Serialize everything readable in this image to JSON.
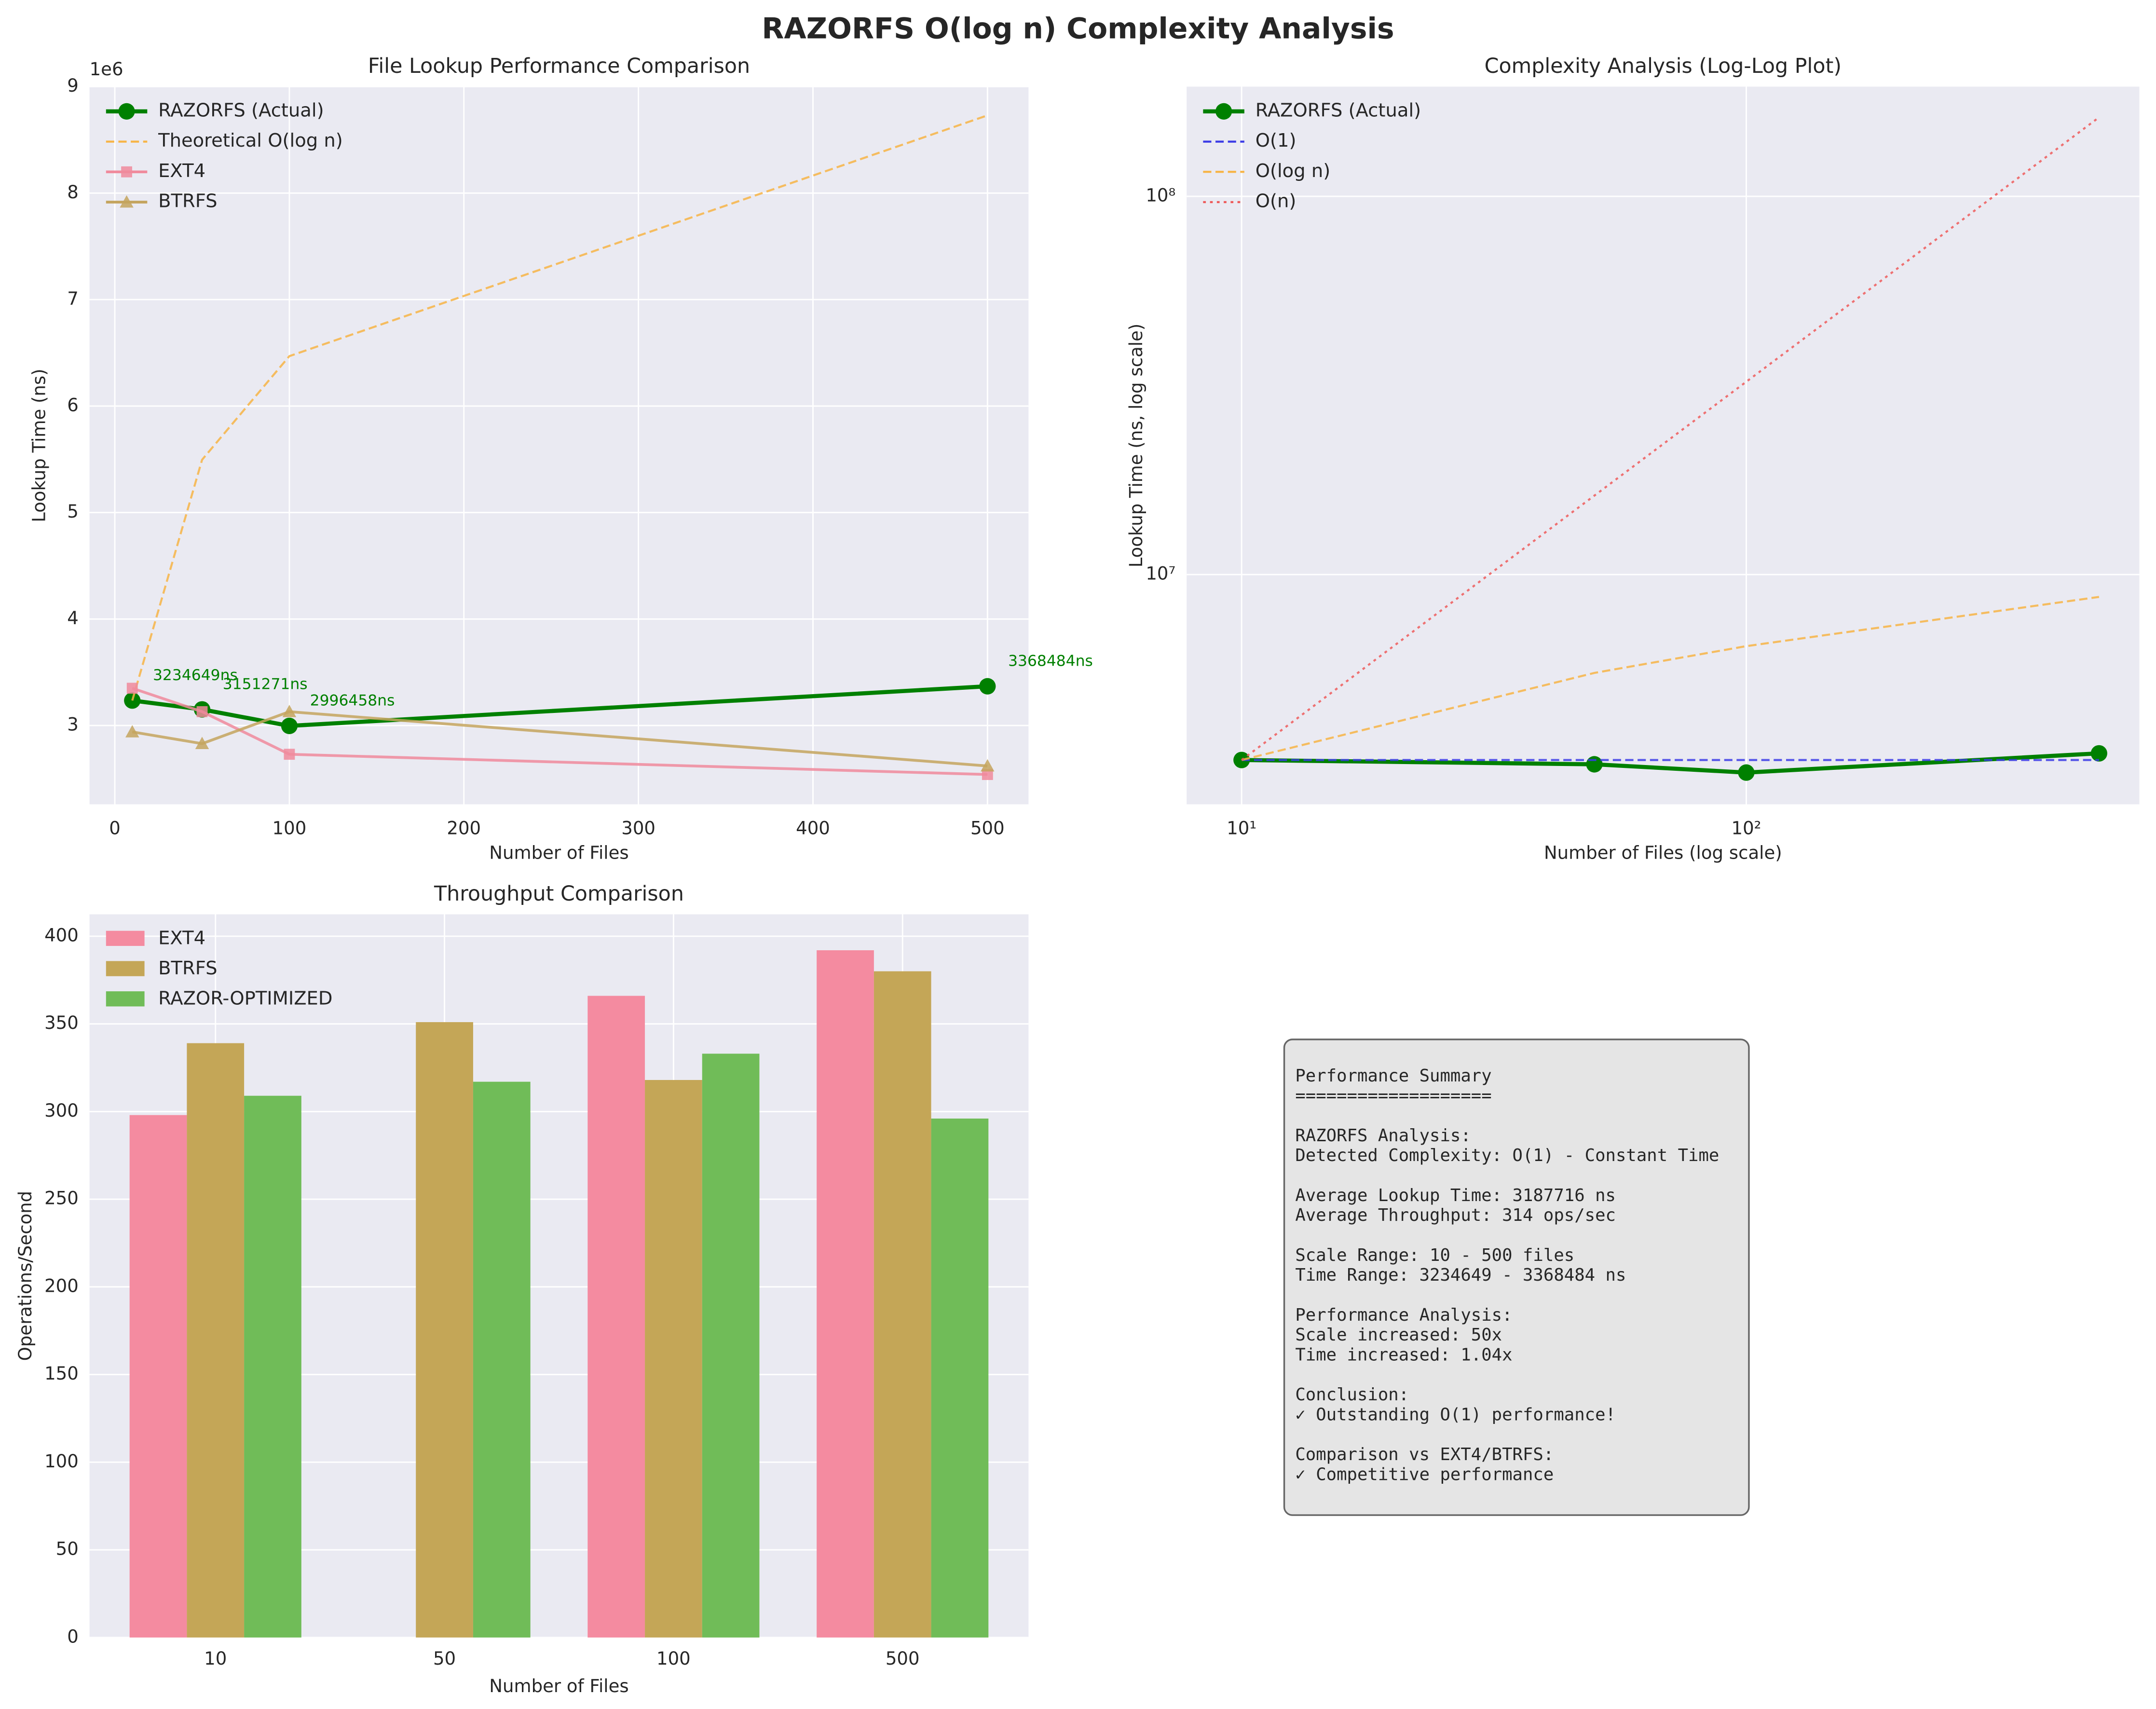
{
  "title": "RAZORFS O(log n) Complexity Analysis",
  "chart_data": [
    {
      "type": "line",
      "title": "File Lookup Performance Comparison",
      "xlabel": "Number of Files",
      "ylabel": "Lookup Time (ns)",
      "y_offset_label": "1e6",
      "x": [
        10,
        50,
        100,
        500
      ],
      "xlim": [
        -14.5,
        523.5
      ],
      "xticks": [
        0,
        100,
        200,
        300,
        400,
        500
      ],
      "ylim": [
        2260000,
        9000000
      ],
      "yticks": [
        {
          "value": 3000000,
          "label": "3"
        },
        {
          "value": 4000000,
          "label": "4"
        },
        {
          "value": 5000000,
          "label": "5"
        },
        {
          "value": 6000000,
          "label": "6"
        },
        {
          "value": 7000000,
          "label": "7"
        },
        {
          "value": 8000000,
          "label": "8"
        },
        {
          "value": 9000000,
          "label": "9"
        }
      ],
      "grid": true,
      "legend": "upper left",
      "series": [
        {
          "name": "RAZORFS (Actual)",
          "color": "#008000",
          "linestyle": "solid",
          "linewidth": 3,
          "marker": "o",
          "values": [
            3234649,
            3151271,
            2996458,
            3368484
          ],
          "value_labels": [
            "3234649ns",
            "3151271ns",
            "2996458ns",
            "3368484ns"
          ]
        },
        {
          "name": "Theoretical O(log n)",
          "color": "#f7b445",
          "linestyle": "dashed",
          "linewidth": 1.5,
          "values": [
            3234649,
            5496000,
            6469000,
            8730000
          ]
        },
        {
          "name": "EXT4",
          "color": "#f08a9c",
          "linestyle": "solid",
          "linewidth": 2,
          "marker": "s",
          "values": [
            3350000,
            3130000,
            2730000,
            2540000
          ]
        },
        {
          "name": "BTRFS",
          "color": "#c4a45e",
          "linestyle": "solid",
          "linewidth": 2,
          "marker": "^",
          "values": [
            2940000,
            2830000,
            3130000,
            2620000
          ]
        }
      ]
    },
    {
      "type": "line",
      "title": "Complexity Analysis (Log-Log Plot)",
      "xlabel": "Number of Files (log scale)",
      "ylabel": "Lookup Time (ns, log scale)",
      "xscale": "log",
      "yscale": "log",
      "x": [
        10,
        50,
        100,
        500
      ],
      "xlim": [
        7.78,
        601
      ],
      "xticks": [
        {
          "value": 10,
          "label": "10¹"
        },
        {
          "value": 100,
          "label": "10²"
        }
      ],
      "ylim": [
        2470000,
        195000000
      ],
      "yticks": [
        {
          "value": 10000000,
          "label": "10⁷"
        },
        {
          "value": 100000000,
          "label": "10⁸"
        }
      ],
      "grid": true,
      "legend": "upper left",
      "series": [
        {
          "name": "RAZORFS (Actual)",
          "color": "#008000",
          "linestyle": "solid",
          "linewidth": 3,
          "marker": "o",
          "values": [
            3234649,
            3151271,
            2996458,
            3368484
          ]
        },
        {
          "name": "O(1)",
          "color": "#3a3ae6",
          "linestyle": "dashed",
          "linewidth": 1.5,
          "values": [
            3234649,
            3234649,
            3234649,
            3234649
          ]
        },
        {
          "name": "O(log n)",
          "color": "#f7b445",
          "linestyle": "dashed",
          "linewidth": 1.5,
          "values": [
            3234649,
            5496000,
            6469000,
            8730000
          ]
        },
        {
          "name": "O(n)",
          "color": "#ee5a5a",
          "linestyle": "dotted",
          "linewidth": 1.5,
          "values": [
            3234649,
            16173245,
            32346490,
            161732450
          ]
        }
      ]
    },
    {
      "type": "bar",
      "title": "Throughput Comparison",
      "xlabel": "Number of Files",
      "ylabel": "Operations/Second",
      "categories": [
        "10",
        "50",
        "100",
        "500"
      ],
      "ylim": [
        0,
        412.5
      ],
      "yticks": [
        0,
        50,
        100,
        150,
        200,
        250,
        300,
        350,
        400
      ],
      "grid": true,
      "legend": "upper left",
      "series": [
        {
          "name": "EXT4",
          "color": "#f48ba0",
          "values": [
            298,
            null,
            366,
            392
          ]
        },
        {
          "name": "BTRFS",
          "color": "#c4a657",
          "values": [
            339,
            351,
            318,
            380
          ]
        },
        {
          "name": "RAZOR-OPTIMIZED",
          "color": "#70bc58",
          "values": [
            309,
            317,
            333,
            296
          ]
        }
      ]
    }
  ],
  "summary_box": {
    "blocks": [
      [
        "Performance Summary",
        "==================="
      ],
      [
        "RAZORFS Analysis:",
        "Detected Complexity: O(1) - Constant Time"
      ],
      [
        "Average Lookup Time: 3187716 ns",
        "Average Throughput: 314 ops/sec"
      ],
      [
        "Scale Range: 10 - 500 files",
        "Time Range: 3234649 - 3368484 ns"
      ],
      [
        "Performance Analysis:",
        "Scale increased: 50x",
        "Time increased: 1.04x"
      ],
      [
        "Conclusion:",
        "✓ Outstanding O(1) performance!"
      ],
      [
        "Comparison vs EXT4/BTRFS:",
        "✓ Competitive performance"
      ]
    ]
  }
}
